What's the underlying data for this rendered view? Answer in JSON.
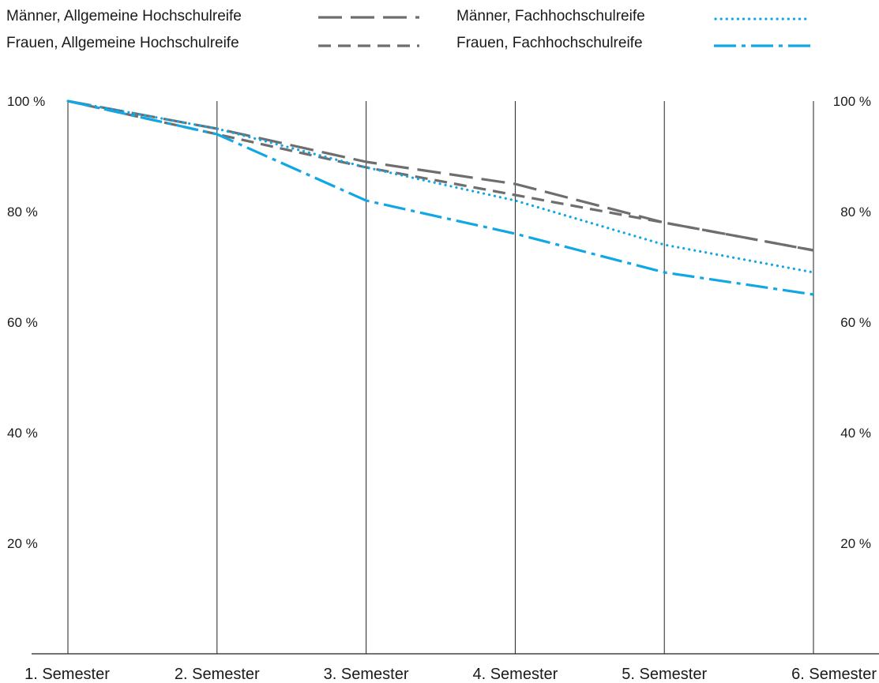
{
  "colors": {
    "gray": "#6e6e6e",
    "blue": "#11a6e4",
    "grid": "#222222"
  },
  "chart_data": {
    "type": "line",
    "title": "",
    "xlabel": "",
    "ylabel": "",
    "categories": [
      "1. Semester",
      "2. Semester",
      "3. Semester",
      "4. Semester",
      "5. Semester",
      "6. Semester"
    ],
    "ylim": [
      0,
      100
    ],
    "yticks": [
      20,
      40,
      60,
      80,
      100
    ],
    "ytick_labels": [
      "20 %",
      "40 %",
      "60 %",
      "80 %",
      "100 %"
    ],
    "grid": "vertical",
    "legend": "top",
    "series": [
      {
        "name": "Männer, Allgemeine Hochschulreife",
        "values": [
          100,
          95,
          89,
          85,
          78,
          73
        ],
        "color": "#6e6e6e",
        "style": "longdash"
      },
      {
        "name": "Frauen, Allgemeine Hochschulreife",
        "values": [
          100,
          94,
          88,
          83,
          78,
          73
        ],
        "color": "#6e6e6e",
        "style": "dash"
      },
      {
        "name": "Männer, Fachhochschulreife",
        "values": [
          100,
          95,
          88,
          82,
          74,
          69
        ],
        "color": "#11a6e4",
        "style": "dot"
      },
      {
        "name": "Frauen, Fachhochschulreife",
        "values": [
          100,
          94,
          82,
          76,
          69,
          65
        ],
        "color": "#11a6e4",
        "style": "dashdot"
      }
    ]
  }
}
